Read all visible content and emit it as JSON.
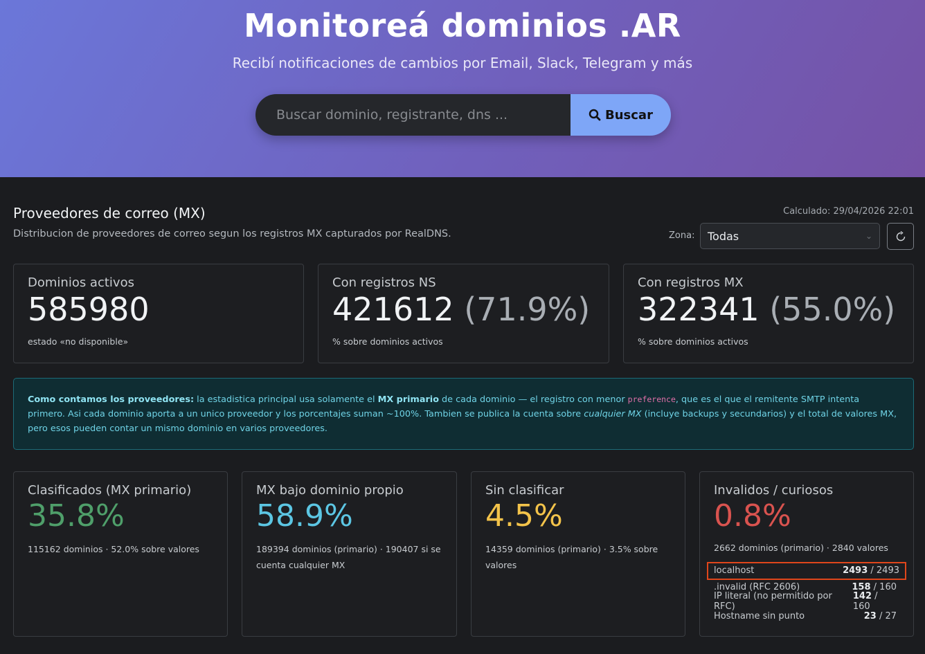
{
  "hero": {
    "title": "Monitoreá dominios .AR",
    "subtitle": "Recibí notificaciones de cambios por Email, Slack, Telegram y más",
    "search_placeholder": "Buscar dominio, registrante, dns ...",
    "search_button": "Buscar"
  },
  "section": {
    "title": "Proveedores de correo (MX)",
    "description": "Distribucion de proveedores de correo segun los registros MX capturados por RealDNS.",
    "calculated": "Calculado: 29/04/2026 22:01",
    "zona_label": "Zona:",
    "zona_value": "Todas"
  },
  "stats": {
    "active": {
      "label": "Dominios activos",
      "value": "585980",
      "note": "estado «no disponible»"
    },
    "ns": {
      "label": "Con registros NS",
      "value": "421612",
      "pct": "(71.9%)",
      "note": "% sobre dominios activos"
    },
    "mx": {
      "label": "Con registros MX",
      "value": "322341",
      "pct": "(55.0%)",
      "note": "% sobre dominios activos"
    }
  },
  "info": {
    "lead": "Como contamos los proveedores:",
    "t1": " la estadistica principal usa solamente el ",
    "b1": "MX primario",
    "t2": " de cada dominio — el registro con menor ",
    "code": "preference",
    "t3": ", que es el que el remitente SMTP intenta primero. Asi cada dominio aporta a un unico proveedor y los porcentajes suman ~100%. Tambien se publica la cuenta sobre ",
    "i1": "cualquier MX",
    "t4": " (incluye backups y secundarios) y el total de valores MX, pero esos pueden contar un mismo dominio en varios proveedores."
  },
  "categories": {
    "classified": {
      "label": "Clasificados (MX primario)",
      "value": "35.8%",
      "note": "115162 dominios · 52.0% sobre valores"
    },
    "own": {
      "label": "MX bajo dominio propio",
      "value": "58.9%",
      "note": "189394 dominios (primario) · 190407 si se cuenta cualquier MX"
    },
    "unclassified": {
      "label": "Sin clasificar",
      "value": "4.5%",
      "note": "14359 dominios (primario) · 3.5% sobre valores"
    },
    "invalid": {
      "label": "Invalidos / curiosos",
      "value": "0.8%",
      "note": "2662 dominios (primario) · 2840 valores",
      "rows": [
        {
          "name": "localhost",
          "a": "2493",
          "b": " / 2493"
        },
        {
          "name": ".invalid (RFC 2606)",
          "a": "158",
          "b": " / 160"
        },
        {
          "name": "IP literal (no permitido por RFC)",
          "a": "142",
          "b": " / 160"
        },
        {
          "name": "Hostname sin punto",
          "a": "23",
          "b": " / 27"
        }
      ]
    }
  },
  "colors": {
    "classified": "#4f9f6a",
    "own": "#5cc6e3",
    "unclassified": "#f3c34a",
    "invalid": "#d9534f",
    "highlight": "#e0461b"
  }
}
